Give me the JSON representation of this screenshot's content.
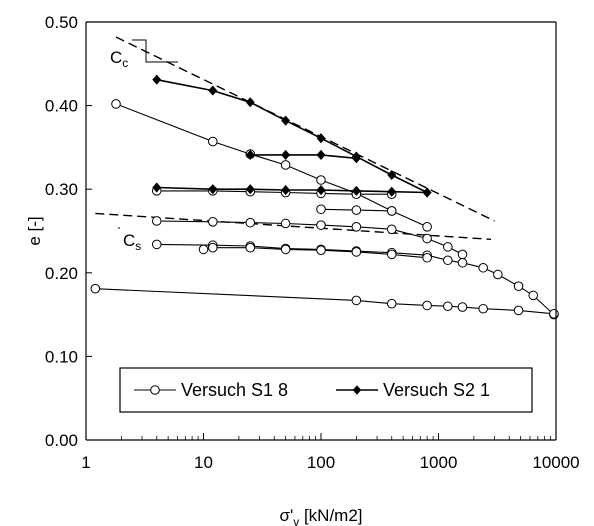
{
  "chart_data": {
    "type": "scatter",
    "xscale": "log",
    "xlim": [
      1,
      10000
    ],
    "ylim": [
      0.0,
      0.5
    ],
    "xlabel": "σ'v [kN/m2]",
    "xlabel_main": "σ'",
    "xlabel_sub": "v",
    "xlabel_rest": " [kN/m2]",
    "ylabel": "e [-]",
    "x_ticks": [
      1,
      10,
      100,
      1000,
      10000
    ],
    "x_tick_labels": [
      "1",
      "10",
      "100",
      "1000",
      "10000"
    ],
    "y_ticks": [
      0.0,
      0.1,
      0.2,
      0.3,
      0.4,
      0.5
    ],
    "y_tick_labels": [
      "0.00",
      "0.10",
      "0.20",
      "0.30",
      "0.40",
      "0.50"
    ],
    "grid": false,
    "legend_position": "bottom-center",
    "annotations": [
      {
        "main": "C",
        "sub": "c"
      },
      {
        "main": "C",
        "sub": "s"
      }
    ],
    "series": [
      {
        "name": "Versuch S1 8",
        "marker": "open-circle",
        "segments": [
          {
            "x": [
              1.8,
              12,
              25,
              50,
              100,
              200,
              400,
              800
            ],
            "y": [
              0.402,
              0.357,
              0.342,
              0.329,
              0.311,
              0.295,
              0.274,
              0.255
            ]
          },
          {
            "x": [
              4,
              12,
              25,
              50,
              100,
              200,
              400,
              800,
              1200,
              1600
            ],
            "y": [
              0.262,
              0.261,
              0.26,
              0.259,
              0.257,
              0.255,
              0.252,
              0.241,
              0.231,
              0.222
            ]
          },
          {
            "x": [
              4,
              12,
              25,
              50,
              100,
              200,
              400,
              800,
              1200,
              1600,
              2400,
              3200,
              4800,
              6400,
              9600
            ],
            "y": [
              0.234,
              0.233,
              0.232,
              0.229,
              0.228,
              0.226,
              0.224,
              0.221,
              0.215,
              0.212,
              0.206,
              0.198,
              0.184,
              0.173,
              0.15
            ]
          },
          {
            "x": [
              10,
              12,
              25,
              50,
              100,
              200,
              400,
              800
            ],
            "y": [
              0.228,
              0.23,
              0.23,
              0.228,
              0.227,
              0.225,
              0.222,
              0.218
            ]
          },
          {
            "x": [
              100,
              200,
              400
            ],
            "y": [
              0.276,
              0.275,
              0.274
            ]
          },
          {
            "x": [
              4,
              12,
              25,
              50,
              100,
              200,
              400
            ],
            "y": [
              0.298,
              0.298,
              0.297,
              0.296,
              0.295,
              0.294,
              0.294
            ]
          },
          {
            "x": [
              1.2,
              200,
              400,
              800,
              1200,
              1600,
              2400,
              4800,
              9600
            ],
            "y": [
              0.181,
              0.167,
              0.163,
              0.161,
              0.16,
              0.159,
              0.157,
              0.155,
              0.151
            ]
          }
        ]
      },
      {
        "name": "Versuch S2 1",
        "marker": "filled-diamond",
        "segments": [
          {
            "x": [
              4,
              12,
              25,
              50,
              100,
              200,
              400,
              800
            ],
            "y": [
              0.431,
              0.418,
              0.404,
              0.382,
              0.361,
              0.339,
              0.317,
              0.296
            ]
          },
          {
            "x": [
              25,
              50,
              100,
              200
            ],
            "y": [
              0.341,
              0.341,
              0.341,
              0.337
            ]
          },
          {
            "x": [
              4,
              12,
              25,
              50,
              100,
              200,
              400,
              800
            ],
            "y": [
              0.302,
              0.3,
              0.3,
              0.299,
              0.299,
              0.298,
              0.297,
              0.296
            ]
          }
        ]
      }
    ],
    "reference_lines": [
      {
        "x": [
          1.8,
          3000
        ],
        "y": [
          0.482,
          0.262
        ]
      },
      {
        "x": [
          1.2,
          2800
        ],
        "y": [
          0.271,
          0.24
        ]
      }
    ]
  }
}
